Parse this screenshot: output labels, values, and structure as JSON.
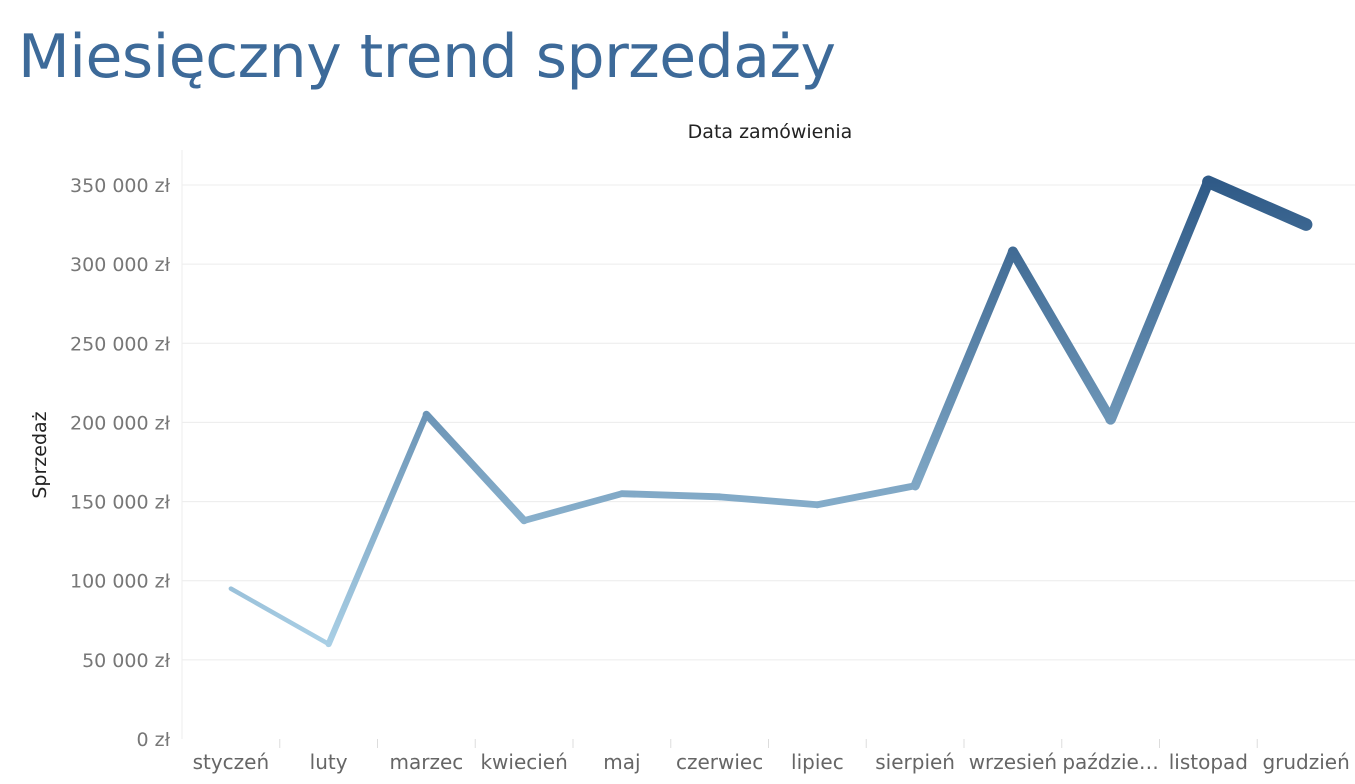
{
  "chart_data": {
    "type": "line",
    "title": "Miesięczny trend sprzedaży",
    "xlabel": "Data zamówienia",
    "ylabel": "Sprzedaż",
    "categories": [
      "styczeń",
      "luty",
      "marzec",
      "kwiecień",
      "maj",
      "czerwiec",
      "lipiec",
      "sierpień",
      "wrzesień",
      "paździe…",
      "listopad",
      "grudzień"
    ],
    "series": [
      {
        "values": [
          95000,
          60000,
          205000,
          138000,
          155000,
          153000,
          148000,
          160000,
          308000,
          202000,
          352000,
          325000
        ]
      }
    ],
    "yticks": [
      0,
      50000,
      100000,
      150000,
      200000,
      250000,
      300000,
      350000
    ],
    "ytick_labels": [
      "0 zł",
      "50 000 zł",
      "100 000 zł",
      "150 000 zł",
      "200 000 zł",
      "250 000 zł",
      "300 000 zł",
      "350 000 zł"
    ],
    "ylim": [
      0,
      375000
    ],
    "grid": true,
    "colors": {
      "light": "#a9cfe5",
      "dark": "#2f5a87",
      "title": "#3d6a99"
    }
  }
}
